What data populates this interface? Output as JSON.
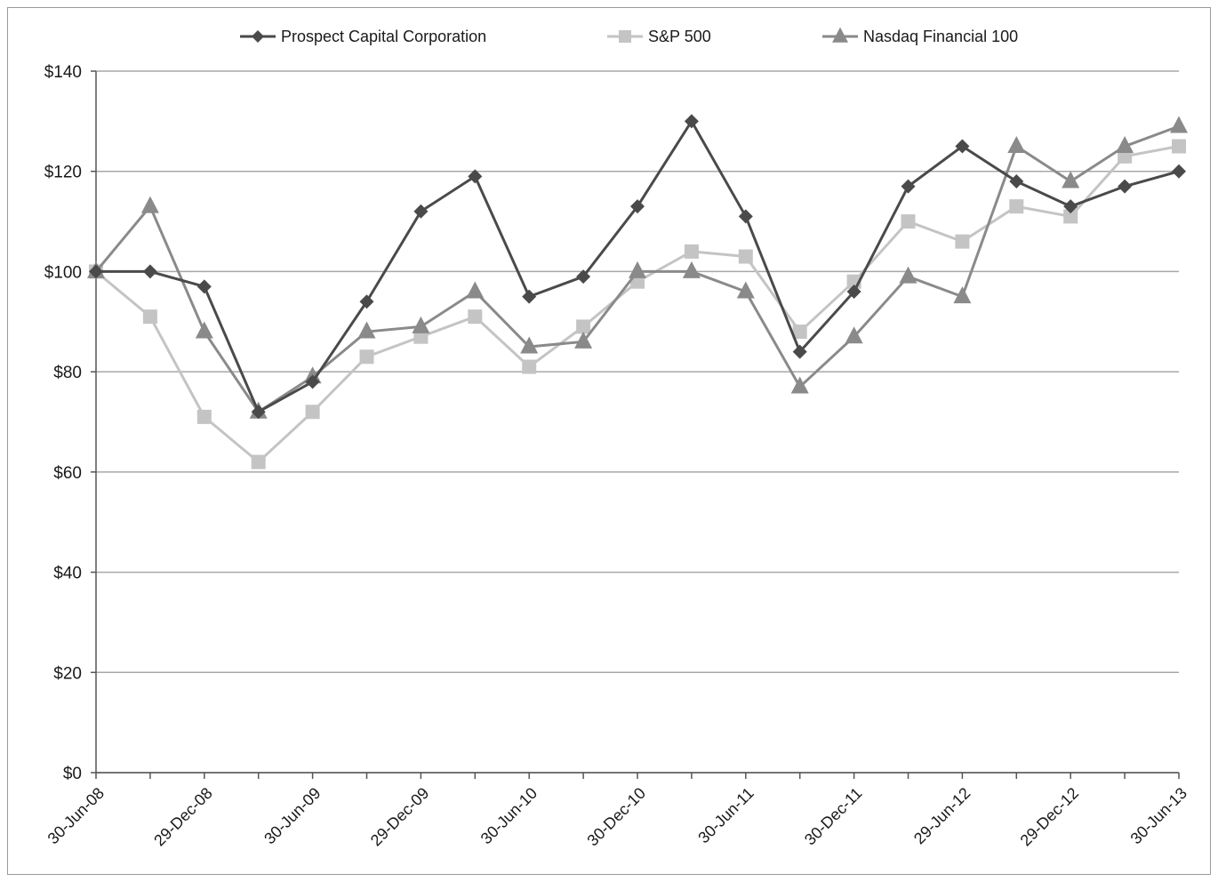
{
  "chart_data": {
    "type": "line",
    "title": "",
    "xlabel": "",
    "ylabel": "",
    "ylim": [
      0,
      140
    ],
    "y_ticks": [
      "$0",
      "$20",
      "$40",
      "$60",
      "$80",
      "$100",
      "$120",
      "$140"
    ],
    "y_tick_values": [
      0,
      20,
      40,
      60,
      80,
      100,
      120,
      140
    ],
    "x_tick_labels": [
      "30-Jun-08",
      "29-Dec-08",
      "30-Jun-09",
      "29-Dec-09",
      "30-Jun-10",
      "30-Dec-10",
      "30-Jun-11",
      "30-Dec-11",
      "29-Jun-12",
      "29-Dec-12",
      "30-Jun-13"
    ],
    "x_points": 21,
    "grid": true,
    "legend_position": "top",
    "series": [
      {
        "name": "Prospect Capital Corporation",
        "color": "#4a4a4a",
        "marker": "diamond",
        "values": [
          100,
          100,
          97,
          72,
          78,
          94,
          112,
          119,
          95,
          99,
          113,
          130,
          111,
          84,
          96,
          117,
          125,
          118,
          113,
          117,
          120
        ]
      },
      {
        "name": "S&P 500",
        "color": "#c4c4c4",
        "marker": "square",
        "values": [
          100,
          91,
          71,
          62,
          72,
          83,
          87,
          91,
          81,
          89,
          98,
          104,
          103,
          88,
          98,
          110,
          106,
          113,
          111,
          123,
          125
        ]
      },
      {
        "name": "Nasdaq Financial 100",
        "color": "#8a8a8a",
        "marker": "triangle",
        "values": [
          100,
          113,
          88,
          72,
          79,
          88,
          89,
          96,
          85,
          86,
          100,
          100,
          96,
          77,
          87,
          99,
          95,
          125,
          118,
          125,
          129
        ]
      }
    ]
  }
}
